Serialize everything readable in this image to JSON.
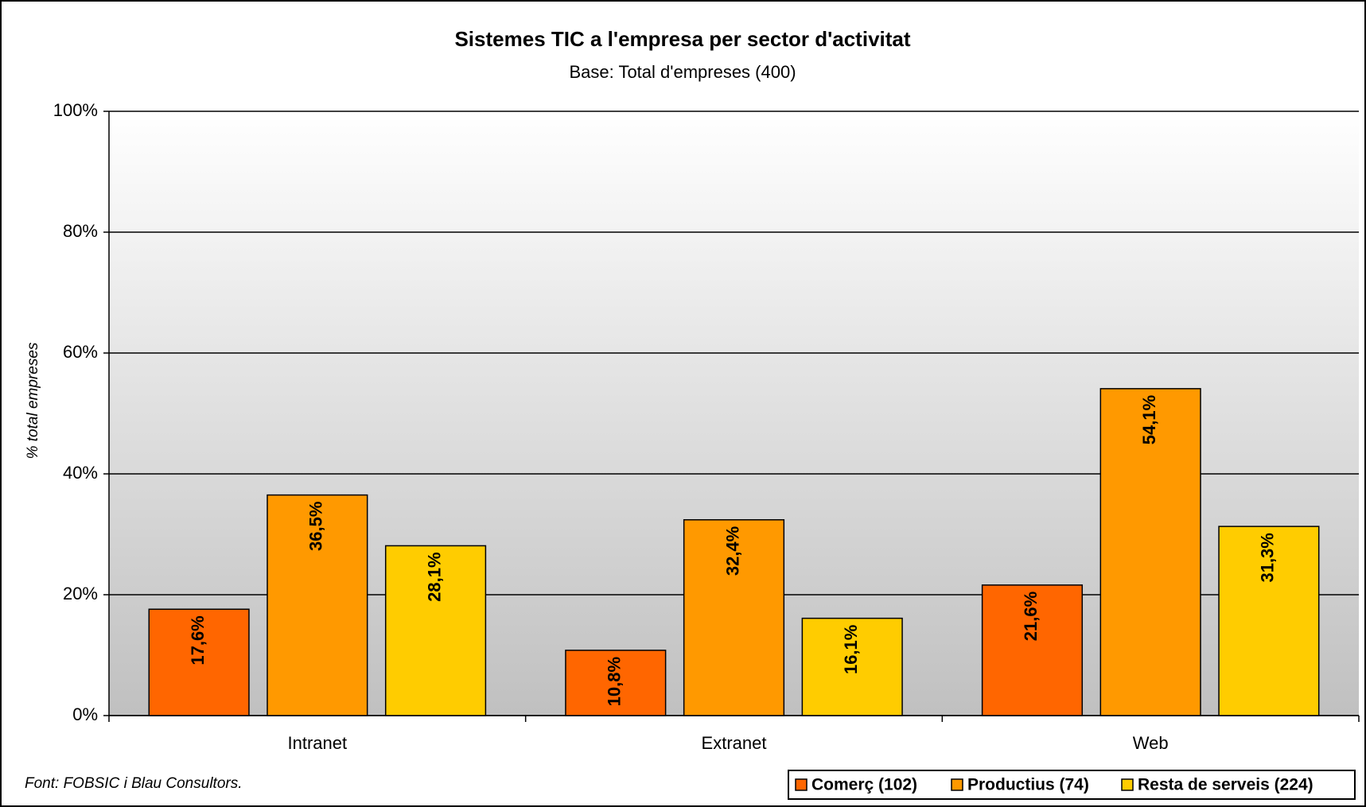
{
  "chart_data": {
    "type": "bar",
    "title": "Sistemes TIC a l'empresa per sector d'activitat",
    "subtitle": "Base: Total d'empreses (400)",
    "y_label": "% total empreses",
    "source": "Font: FOBSIC i Blau Consultors.",
    "categories": [
      "Intranet",
      "Extranet",
      "Web"
    ],
    "series": [
      {
        "name": "Comerç (102)",
        "color": "#ff6600",
        "values": [
          17.6,
          10.8,
          21.6
        ],
        "value_labels": [
          "17,6%",
          "10,8%",
          "21,6%"
        ]
      },
      {
        "name": "Productius (74)",
        "color": "#ff9900",
        "values": [
          36.5,
          32.4,
          54.1
        ],
        "value_labels": [
          "36,5%",
          "32,4%",
          "54,1%"
        ]
      },
      {
        "name": "Resta de serveis (224)",
        "color": "#ffcc00",
        "values": [
          28.1,
          16.1,
          31.3
        ],
        "value_labels": [
          "28,1%",
          "16,1%",
          "31,3%"
        ]
      }
    ],
    "ylim": [
      0,
      100
    ],
    "yticks": [
      {
        "value": 0,
        "label": "0%"
      },
      {
        "value": 20,
        "label": "20%"
      },
      {
        "value": 40,
        "label": "40%"
      },
      {
        "value": 60,
        "label": "60%"
      },
      {
        "value": 80,
        "label": "80%"
      },
      {
        "value": 100,
        "label": "100%"
      }
    ],
    "grid": true
  }
}
